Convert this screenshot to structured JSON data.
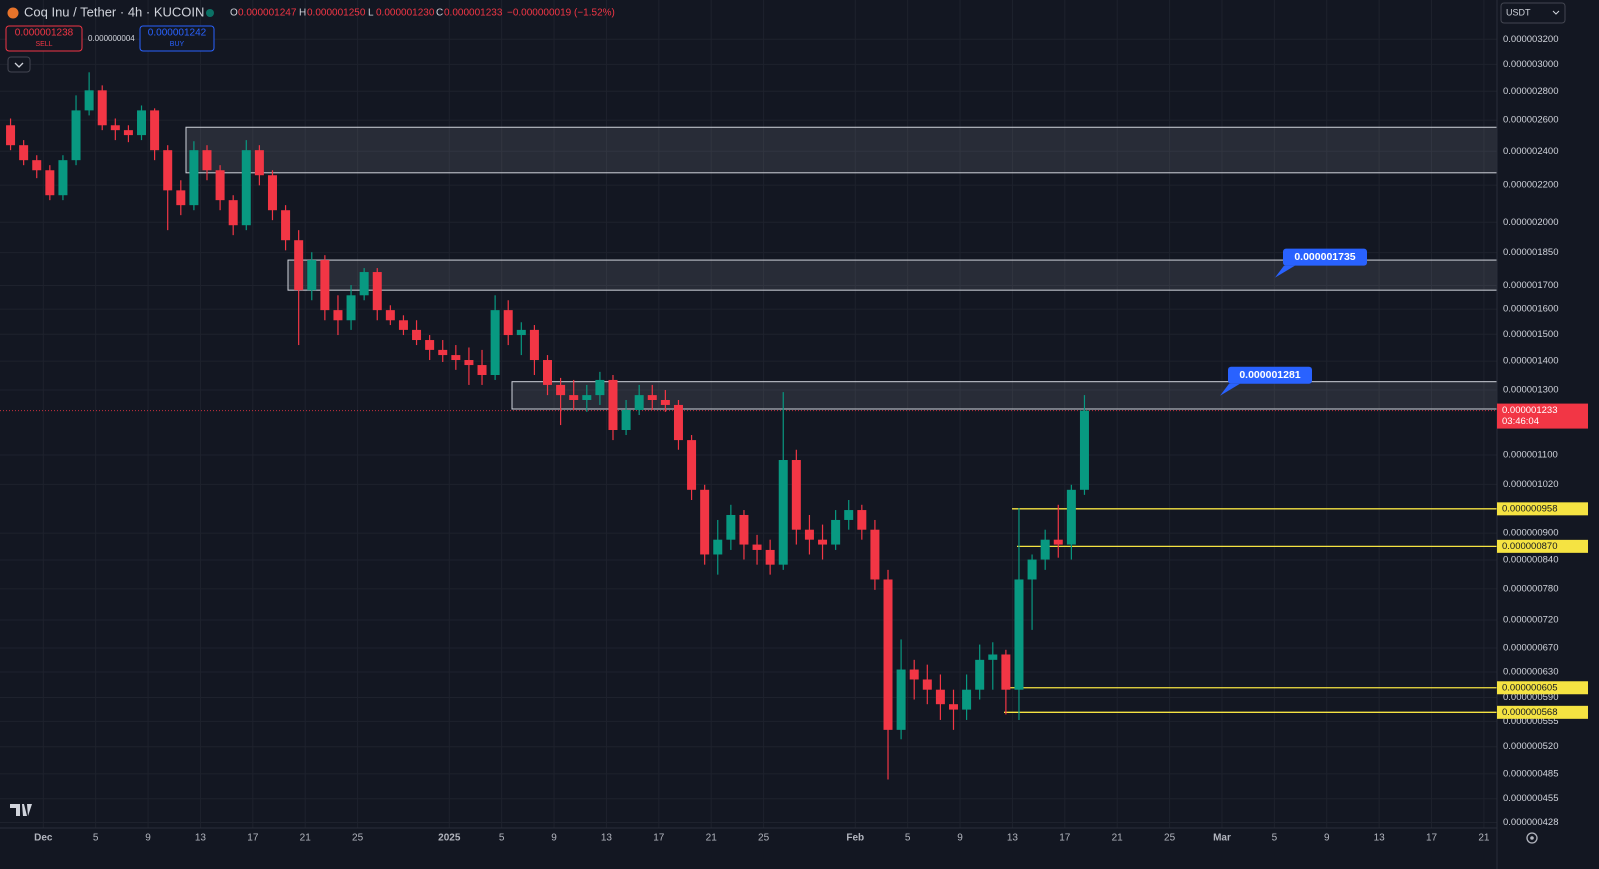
{
  "header": {
    "symbol": "Coq Inu / Tether · 4h · KUCOIN",
    "ohlc": [
      {
        "key": "O",
        "value": "0.000001247"
      },
      {
        "key": "H",
        "value": "0.000001250"
      },
      {
        "key": "L",
        "value": "0.000001230"
      },
      {
        "key": "C",
        "value": "0.000001233"
      }
    ],
    "change": "−0.000000019 (−1.52%)",
    "sell": {
      "price": "0.000001238",
      "label": "SELL"
    },
    "spread": "0.000000004",
    "buy": {
      "price": "0.000001242",
      "label": "BUY"
    },
    "currency": "USDT"
  },
  "chart_data": {
    "type": "candlestick",
    "log_scale": true,
    "grid": true,
    "up_color": "#089981",
    "down_color": "#f23645",
    "x": [
      "2024-11-28",
      "2024-11-29",
      "2024-11-30",
      "2024-12-01",
      "2024-12-02",
      "2024-12-03",
      "2024-12-04",
      "2024-12-05",
      "2024-12-06",
      "2024-12-07",
      "2024-12-08",
      "2024-12-09",
      "2024-12-10",
      "2024-12-11",
      "2024-12-12",
      "2024-12-13",
      "2024-12-14",
      "2024-12-15",
      "2024-12-16",
      "2024-12-17",
      "2024-12-18",
      "2024-12-19",
      "2024-12-20",
      "2024-12-21",
      "2024-12-22",
      "2024-12-23",
      "2024-12-24",
      "2024-12-25",
      "2024-12-26",
      "2024-12-27",
      "2024-12-28",
      "2024-12-29",
      "2024-12-30",
      "2024-12-31",
      "2025-01-01",
      "2025-01-02",
      "2025-01-03",
      "2025-01-04",
      "2025-01-05",
      "2025-01-06",
      "2025-01-07",
      "2025-01-08",
      "2025-01-09",
      "2025-01-10",
      "2025-01-11",
      "2025-01-12",
      "2025-01-13",
      "2025-01-14",
      "2025-01-15",
      "2025-01-16",
      "2025-01-17",
      "2025-01-18",
      "2025-01-19",
      "2025-01-20",
      "2025-01-21",
      "2025-01-22",
      "2025-01-23",
      "2025-01-24",
      "2025-01-25",
      "2025-01-26",
      "2025-01-27",
      "2025-01-28",
      "2025-01-29",
      "2025-01-30",
      "2025-01-31",
      "2025-02-01",
      "2025-02-02",
      "2025-02-03",
      "2025-02-04",
      "2025-02-05",
      "2025-02-06",
      "2025-02-07",
      "2025-02-08",
      "2025-02-09",
      "2025-02-10",
      "2025-02-11",
      "2025-02-12",
      "2025-02-13",
      "2025-02-14",
      "2025-02-15",
      "2025-02-16",
      "2025-02-17",
      "2025-02-18"
    ],
    "open": [
      2.566e-06,
      2.438e-06,
      2.346e-06,
      2.286e-06,
      2.144e-06,
      2.346e-06,
      2.666e-06,
      2.807e-06,
      2.566e-06,
      2.534e-06,
      2.502e-06,
      2.666e-06,
      2.407e-06,
      2.171e-06,
      2.09e-06,
      2.407e-06,
      2.286e-06,
      2.117e-06,
      1.985e-06,
      2.407e-06,
      2.257e-06,
      2.063e-06,
      1.91e-06,
      1.68e-06,
      1.815e-06,
      1.596e-06,
      1.555e-06,
      1.658e-06,
      1.76e-06,
      1.596e-06,
      1.555e-06,
      1.517e-06,
      1.478e-06,
      1.441e-06,
      1.422e-06,
      1.404e-06,
      1.386e-06,
      1.351e-06,
      1.596e-06,
      1.497e-06,
      1.517e-06,
      1.404e-06,
      1.317e-06,
      1.283e-06,
      1.267e-06,
      1.283e-06,
      1.334e-06,
      1.173e-06,
      1.235e-06,
      1.283e-06,
      1.267e-06,
      1.251e-06,
      1.143e-06,
      1.006e-06,
      8.52e-07,
      8.85e-07,
      9.43e-07,
      8.74e-07,
      8.62e-07,
      8.3e-07,
      1.086e-06,
      9.08e-07,
      8.85e-07,
      8.74e-07,
      9.31e-07,
      9.55e-07,
      9.08e-07,
      7.99e-07,
      5.43e-07,
      6.34e-07,
      6.18e-07,
      6.02e-07,
      5.8e-07,
      5.72e-07,
      6.02e-07,
      6.5e-07,
      6.59e-07,
      6.02e-07,
      7.99e-07,
      8.41e-07,
      8.85e-07,
      8.74e-07,
      1.006e-06
    ],
    "high": [
      2.611e-06,
      2.47e-06,
      2.376e-06,
      2.316e-06,
      2.376e-06,
      2.771e-06,
      2.94e-06,
      2.843e-06,
      2.611e-06,
      2.566e-06,
      2.7e-06,
      2.68e-06,
      2.438e-06,
      2.228e-06,
      2.463e-06,
      2.438e-06,
      2.316e-06,
      2.144e-06,
      2.47e-06,
      2.438e-06,
      2.286e-06,
      2.09e-06,
      1.96e-06,
      1.852e-06,
      1.838e-06,
      1.658e-06,
      1.702e-06,
      1.778e-06,
      1.778e-06,
      1.616e-06,
      1.575e-06,
      1.555e-06,
      1.497e-06,
      1.478e-06,
      1.459e-06,
      1.45e-06,
      1.441e-06,
      1.658e-06,
      1.637e-06,
      1.547e-06,
      1.536e-06,
      1.422e-06,
      1.341e-06,
      1.334e-06,
      1.317e-06,
      1.362e-06,
      1.351e-06,
      1.267e-06,
      1.317e-06,
      1.317e-06,
      1.3e-06,
      1.267e-06,
      1.158e-06,
      1.019e-06,
      9.31e-07,
      9.68e-07,
      9.55e-07,
      8.96e-07,
      8.85e-07,
      1.293e-06,
      1.115e-06,
      9.43e-07,
      9.2e-07,
      9.55e-07,
      9.8e-07,
      9.68e-07,
      9.31e-07,
      8.19e-07,
      6.85e-07,
      6.5e-07,
      6.42e-07,
      6.26e-07,
      6.02e-07,
      6.26e-07,
      6.76e-07,
      6.8e-07,
      6.67e-07,
      9.6e-07,
      8.52e-07,
      9.08e-07,
      9.68e-07,
      1.019e-06,
      1.283e-06
    ],
    "low": [
      2.407e-06,
      2.316e-06,
      2.24e-06,
      2.117e-06,
      2.117e-06,
      2.316e-06,
      2.632e-06,
      2.534e-06,
      2.47e-06,
      2.457e-06,
      2.47e-06,
      2.346e-06,
      1.96e-06,
      2.037e-06,
      2.063e-06,
      2.228e-06,
      2.063e-06,
      1.935e-06,
      1.96e-06,
      2.199e-06,
      2.011e-06,
      1.861e-06,
      1.459e-06,
      1.637e-06,
      1.555e-06,
      1.497e-06,
      1.517e-06,
      1.637e-06,
      1.555e-06,
      1.536e-06,
      1.497e-06,
      1.459e-06,
      1.404e-06,
      1.397e-06,
      1.369e-06,
      1.317e-06,
      1.317e-06,
      1.334e-06,
      1.459e-06,
      1.422e-06,
      1.351e-06,
      1.283e-06,
      1.188e-06,
      1.235e-06,
      1.229e-06,
      1.251e-06,
      1.143e-06,
      1.158e-06,
      1.219e-06,
      1.235e-06,
      1.229e-06,
      1.115e-06,
      9.8e-07,
      8.3e-07,
      8.09e-07,
      8.62e-07,
      8.41e-07,
      8.3e-07,
      8.09e-07,
      8.19e-07,
      8.74e-07,
      8.52e-07,
      8.41e-07,
      8.62e-07,
      9.08e-07,
      8.85e-07,
      7.78e-07,
      4.78e-07,
      5.3e-07,
      5.87e-07,
      5.8e-07,
      5.57e-07,
      5.43e-07,
      5.57e-07,
      5.87e-07,
      6.02e-07,
      5.65e-07,
      5.57e-07,
      7.02e-07,
      8.19e-07,
      8.45e-07,
      8.41e-07,
      9.93e-07
    ],
    "close": [
      2.438e-06,
      2.346e-06,
      2.286e-06,
      2.144e-06,
      2.346e-06,
      2.666e-06,
      2.807e-06,
      2.566e-06,
      2.534e-06,
      2.502e-06,
      2.666e-06,
      2.407e-06,
      2.171e-06,
      2.09e-06,
      2.407e-06,
      2.286e-06,
      2.117e-06,
      1.985e-06,
      2.407e-06,
      2.257e-06,
      2.063e-06,
      1.91e-06,
      1.68e-06,
      1.815e-06,
      1.596e-06,
      1.555e-06,
      1.658e-06,
      1.76e-06,
      1.596e-06,
      1.555e-06,
      1.517e-06,
      1.478e-06,
      1.441e-06,
      1.422e-06,
      1.404e-06,
      1.386e-06,
      1.351e-06,
      1.596e-06,
      1.497e-06,
      1.517e-06,
      1.404e-06,
      1.317e-06,
      1.283e-06,
      1.267e-06,
      1.283e-06,
      1.334e-06,
      1.173e-06,
      1.235e-06,
      1.283e-06,
      1.267e-06,
      1.251e-06,
      1.143e-06,
      1.006e-06,
      8.52e-07,
      8.85e-07,
      9.43e-07,
      8.74e-07,
      8.62e-07,
      8.3e-07,
      1.086e-06,
      9.08e-07,
      8.85e-07,
      8.74e-07,
      9.31e-07,
      9.55e-07,
      9.08e-07,
      7.99e-07,
      5.43e-07,
      6.34e-07,
      6.18e-07,
      6.02e-07,
      5.8e-07,
      5.72e-07,
      6.02e-07,
      6.5e-07,
      6.59e-07,
      6.02e-07,
      7.99e-07,
      8.41e-07,
      8.85e-07,
      8.74e-07,
      1.006e-06,
      1.233e-06
    ],
    "xlim": [
      "2024-11-28",
      "2025-03-22"
    ],
    "xticks": [
      {
        "value": "2024-12-01",
        "label": "Dec"
      },
      {
        "value": "2024-12-05",
        "label": "5"
      },
      {
        "value": "2024-12-09",
        "label": "9"
      },
      {
        "value": "2024-12-13",
        "label": "13"
      },
      {
        "value": "2024-12-17",
        "label": "17"
      },
      {
        "value": "2024-12-21",
        "label": "21"
      },
      {
        "value": "2024-12-25",
        "label": "25"
      },
      {
        "value": "2025-01-01",
        "label": "2025"
      },
      {
        "value": "2025-01-05",
        "label": "5"
      },
      {
        "value": "2025-01-09",
        "label": "9"
      },
      {
        "value": "2025-01-13",
        "label": "13"
      },
      {
        "value": "2025-01-17",
        "label": "17"
      },
      {
        "value": "2025-01-21",
        "label": "21"
      },
      {
        "value": "2025-01-25",
        "label": "25"
      },
      {
        "value": "2025-02-01",
        "label": "Feb"
      },
      {
        "value": "2025-02-05",
        "label": "5"
      },
      {
        "value": "2025-02-09",
        "label": "9"
      },
      {
        "value": "2025-02-13",
        "label": "13"
      },
      {
        "value": "2025-02-17",
        "label": "17"
      },
      {
        "value": "2025-02-21",
        "label": "21"
      },
      {
        "value": "2025-02-25",
        "label": "25"
      },
      {
        "value": "2025-03-01",
        "label": "Mar"
      },
      {
        "value": "2025-03-05",
        "label": "5"
      },
      {
        "value": "2025-03-09",
        "label": "9"
      },
      {
        "value": "2025-03-13",
        "label": "13"
      },
      {
        "value": "2025-03-17",
        "label": "17"
      },
      {
        "value": "2025-03-21",
        "label": "21"
      }
    ],
    "ylim": [
      4.22e-07,
      3.54e-06
    ],
    "yticks": [
      {
        "value": 3.2e-06,
        "label": "0.000003200"
      },
      {
        "value": 3e-06,
        "label": "0.000003000"
      },
      {
        "value": 2.8e-06,
        "label": "0.000002800"
      },
      {
        "value": 2.6e-06,
        "label": "0.000002600"
      },
      {
        "value": 2.4e-06,
        "label": "0.000002400"
      },
      {
        "value": 2.2e-06,
        "label": "0.000002200"
      },
      {
        "value": 2e-06,
        "label": "0.000002000"
      },
      {
        "value": 1.85e-06,
        "label": "0.000001850"
      },
      {
        "value": 1.7e-06,
        "label": "0.000001700"
      },
      {
        "value": 1.6e-06,
        "label": "0.000001600"
      },
      {
        "value": 1.5e-06,
        "label": "0.000001500"
      },
      {
        "value": 1.4e-06,
        "label": "0.000001400"
      },
      {
        "value": 1.3e-06,
        "label": "0.000001300"
      },
      {
        "value": 1.1e-06,
        "label": "0.000001100"
      },
      {
        "value": 1.02e-06,
        "label": "0.000001020"
      },
      {
        "value": 9e-07,
        "label": "0.000000900"
      },
      {
        "value": 8.4e-07,
        "label": "0.000000840"
      },
      {
        "value": 7.8e-07,
        "label": "0.000000780"
      },
      {
        "value": 7.2e-07,
        "label": "0.000000720"
      },
      {
        "value": 6.7e-07,
        "label": "0.000000670"
      },
      {
        "value": 6.3e-07,
        "label": "0.000000630"
      },
      {
        "value": 5.9e-07,
        "label": "0.000000590"
      },
      {
        "value": 5.55e-07,
        "label": "0.000000555"
      },
      {
        "value": 5.2e-07,
        "label": "0.000000520"
      },
      {
        "value": 4.85e-07,
        "label": "0.000000485"
      },
      {
        "value": 4.55e-07,
        "label": "0.000000455"
      },
      {
        "value": 4.28e-07,
        "label": "0.000000428"
      }
    ],
    "zones": [
      {
        "top": 2.553e-06,
        "bottom": 2.271e-06
      },
      {
        "top": 1.815e-06,
        "bottom": 1.68e-06
      },
      {
        "top": 1.328e-06,
        "bottom": 1.238e-06
      }
    ],
    "levels": [
      {
        "value": 9.58e-07,
        "label": "0.000000958"
      },
      {
        "value": 8.7e-07,
        "label": "0.000000870"
      },
      {
        "value": 6.05e-07,
        "label": "0.000000605"
      },
      {
        "value": 5.68e-07,
        "label": "0.000000568"
      }
    ],
    "callouts": [
      {
        "value": 1.735e-06,
        "label": "0.000001735"
      },
      {
        "value": 1.281e-06,
        "label": "0.000001281"
      }
    ],
    "current_price": {
      "value": 1.233e-06,
      "label": "0.000001233",
      "countdown": "03:46:04"
    }
  }
}
